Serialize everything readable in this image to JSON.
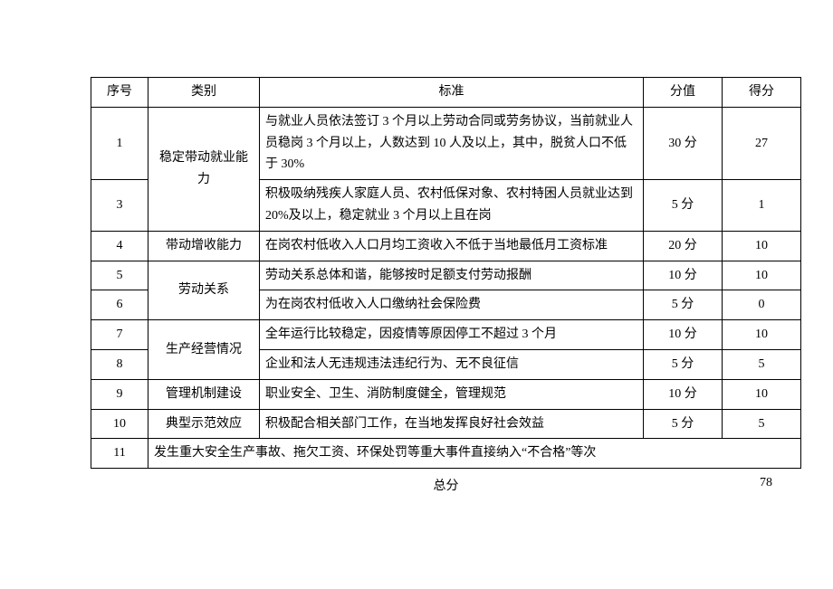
{
  "headers": {
    "num": "序号",
    "cat": "类别",
    "std": "标准",
    "val": "分值",
    "score": "得分"
  },
  "rows": [
    {
      "num": "1",
      "cat": "稳定带动就业能力",
      "std": "与就业人员依法签订 3 个月以上劳动合同或劳务协议，当前就业人员稳岗 3 个月以上，人数达到 10 人及以上，其中，脱贫人口不低于 30%",
      "val": "30 分",
      "score": "27"
    },
    {
      "num": "3",
      "std": "积极吸纳残疾人家庭人员、农村低保对象、农村特困人员就业达到 20%及以上，稳定就业 3 个月以上且在岗",
      "val": "5 分",
      "score": "1"
    },
    {
      "num": "4",
      "cat": "带动增收能力",
      "std": "在岗农村低收入人口月均工资收入不低于当地最低月工资标准",
      "val": "20 分",
      "score": "10"
    },
    {
      "num": "5",
      "cat": "劳动关系",
      "std": "劳动关系总体和谐，能够按时足额支付劳动报酬",
      "val": "10 分",
      "score": "10"
    },
    {
      "num": "6",
      "std": "为在岗农村低收入人口缴纳社会保险费",
      "val": "5 分",
      "score": "0"
    },
    {
      "num": "7",
      "cat": "生产经营情况",
      "std": "全年运行比较稳定，因疫情等原因停工不超过 3 个月",
      "val": "10 分",
      "score": "10"
    },
    {
      "num": "8",
      "std": "企业和法人无违规违法违纪行为、无不良征信",
      "val": "5 分",
      "score": "5"
    },
    {
      "num": "9",
      "cat": "管理机制建设",
      "std": "职业安全、卫生、消防制度健全，管理规范",
      "val": "10 分",
      "score": "10"
    },
    {
      "num": "10",
      "cat": "典型示范效应",
      "std": "积极配合相关部门工作，在当地发挥良好社会效益",
      "val": "5 分",
      "score": "5"
    },
    {
      "num": "11",
      "std_full": "发生重大安全生产事故、拖欠工资、环保处罚等重大事件直接纳入“不合格”等次"
    }
  ],
  "footer": {
    "label": "总分",
    "total": "78"
  }
}
